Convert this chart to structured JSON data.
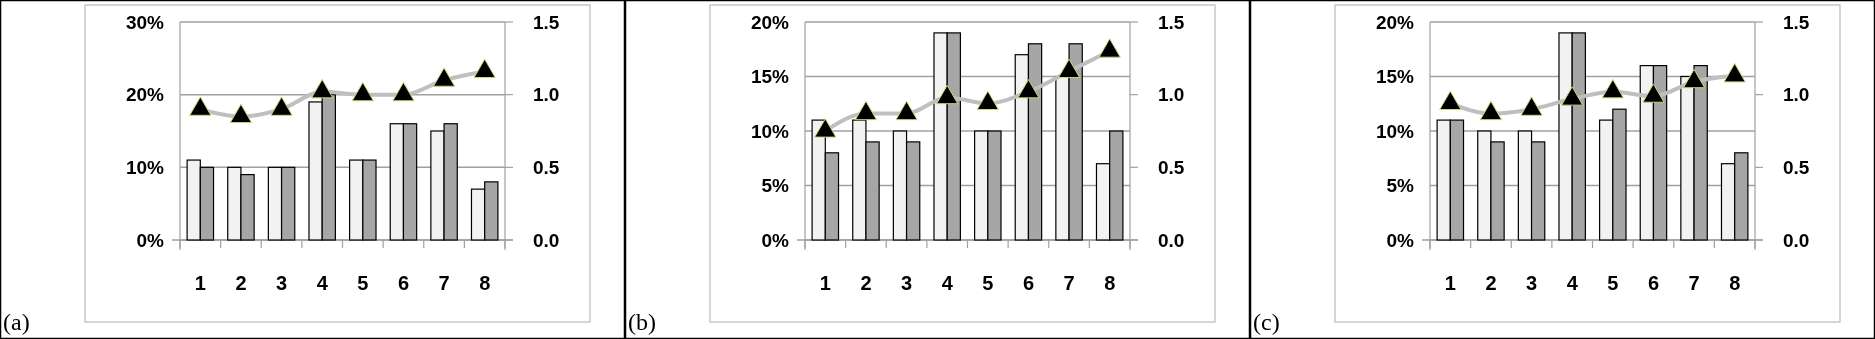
{
  "chart_data": [
    {
      "type": "bar",
      "categories": [
        "1",
        "2",
        "3",
        "4",
        "5",
        "6",
        "7",
        "8"
      ],
      "series": [
        {
          "color": "#f2f2f2",
          "values": [
            11,
            10,
            10,
            19,
            11,
            16,
            15,
            7
          ]
        },
        {
          "color": "#a6a6a6",
          "values": [
            10,
            9,
            10,
            20,
            11,
            16,
            16,
            8
          ]
        },
        {
          "type": "line",
          "axis": "y2",
          "color": "#bfbfbf",
          "marker": "triangle",
          "values": [
            0.9,
            0.85,
            0.9,
            1.02,
            1.0,
            1.0,
            1.1,
            1.16
          ]
        }
      ],
      "ylim": [
        0,
        30
      ],
      "yticks": [
        {
          "value": 0,
          "label": "0%"
        },
        {
          "value": 10,
          "label": "10%"
        },
        {
          "value": 20,
          "label": "20%"
        },
        {
          "value": 30,
          "label": "30%"
        }
      ],
      "y2lim": [
        0,
        1.5
      ],
      "y2ticks": [
        {
          "value": 0,
          "label": "0.0"
        },
        {
          "value": 0.5,
          "label": "0.5"
        },
        {
          "value": 1,
          "label": "1.0"
        },
        {
          "value": 1.5,
          "label": "1.5"
        }
      ],
      "grid": "y",
      "annotations": [
        "(a)"
      ]
    },
    {
      "type": "bar",
      "categories": [
        "1",
        "2",
        "3",
        "4",
        "5",
        "6",
        "7",
        "8"
      ],
      "series": [
        {
          "color": "#f2f2f2",
          "values": [
            11,
            11,
            10,
            19,
            10,
            17,
            15,
            7
          ]
        },
        {
          "color": "#a6a6a6",
          "values": [
            8,
            9,
            9,
            19,
            10,
            18,
            18,
            10
          ]
        },
        {
          "type": "line",
          "axis": "y2",
          "color": "#bfbfbf",
          "marker": "triangle",
          "values": [
            0.75,
            0.87,
            0.87,
            0.98,
            0.94,
            1.02,
            1.16,
            1.3
          ]
        }
      ],
      "ylim": [
        0,
        20
      ],
      "yticks": [
        {
          "value": 0,
          "label": "0%"
        },
        {
          "value": 5,
          "label": "5%"
        },
        {
          "value": 10,
          "label": "10%"
        },
        {
          "value": 15,
          "label": "15%"
        },
        {
          "value": 20,
          "label": "20%"
        }
      ],
      "y2lim": [
        0,
        1.5
      ],
      "y2ticks": [
        {
          "value": 0,
          "label": "0.0"
        },
        {
          "value": 0.5,
          "label": "0.5"
        },
        {
          "value": 1,
          "label": "1.0"
        },
        {
          "value": 1.5,
          "label": "1.5"
        }
      ],
      "grid": "y",
      "annotations": [
        "(b)"
      ]
    },
    {
      "type": "bar",
      "categories": [
        "1",
        "2",
        "3",
        "4",
        "5",
        "6",
        "7",
        "8"
      ],
      "series": [
        {
          "color": "#f2f2f2",
          "values": [
            11,
            10,
            10,
            19,
            11,
            16,
            15,
            7
          ]
        },
        {
          "color": "#a6a6a6",
          "values": [
            11,
            9,
            9,
            19,
            12,
            16,
            16,
            8
          ]
        },
        {
          "type": "line",
          "axis": "y2",
          "color": "#bfbfbf",
          "marker": "triangle",
          "values": [
            0.94,
            0.87,
            0.9,
            0.97,
            1.02,
            0.99,
            1.09,
            1.13
          ]
        }
      ],
      "ylim": [
        0,
        20
      ],
      "yticks": [
        {
          "value": 0,
          "label": "0%"
        },
        {
          "value": 5,
          "label": "5%"
        },
        {
          "value": 10,
          "label": "10%"
        },
        {
          "value": 15,
          "label": "15%"
        },
        {
          "value": 20,
          "label": "20%"
        }
      ],
      "y2lim": [
        0,
        1.5
      ],
      "y2ticks": [
        {
          "value": 0,
          "label": "0.0"
        },
        {
          "value": 0.5,
          "label": "0.5"
        },
        {
          "value": 1,
          "label": "1.0"
        },
        {
          "value": 1.5,
          "label": "1.5"
        }
      ],
      "grid": "y",
      "annotations": [
        "(c)"
      ]
    }
  ]
}
